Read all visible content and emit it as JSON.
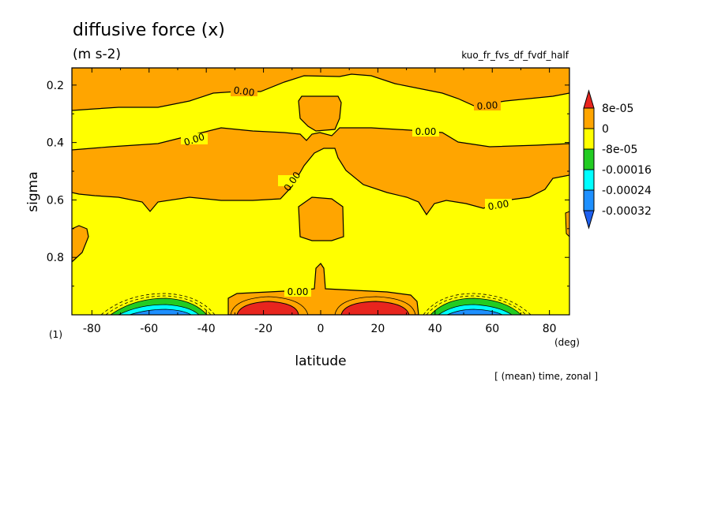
{
  "chart_data": {
    "type": "contour",
    "title": "diffusive force (x)",
    "units": "(m s-2)",
    "run_name": "kuo_fr_fvs_df_fvdf_half",
    "note": "[ (mean) time, zonal ]",
    "figure_number": "(1)",
    "xlabel": "latitude",
    "xunit": "(deg)",
    "ylabel": "sigma",
    "xlim": [
      -87,
      87
    ],
    "ylim": [
      1.0,
      0.14
    ],
    "y_inverted": true,
    "xticks": [
      "-80",
      "-60",
      "-40",
      "-20",
      "0",
      "20",
      "40",
      "60",
      "80"
    ],
    "yticks": [
      "0.2",
      "0.4",
      "0.6",
      "0.8"
    ],
    "contour_labels": [
      "0.00",
      "0.00",
      "0.00",
      "0.00",
      "0.00",
      "0.00",
      "0.00"
    ],
    "colorbar": {
      "levels": [
        "8e-05",
        "0",
        "-8e-05",
        "-0.00016",
        "-0.00024",
        "-0.00032"
      ],
      "colors": [
        "#e8251e",
        "#ffa500",
        "#ffff00",
        "#22cc22",
        "#00ffff",
        "#1e90ff",
        "#1e60f0"
      ]
    },
    "regions": [
      {
        "name": "positive-band-upper",
        "value": "0 to 8e-05"
      },
      {
        "name": "positive-band-middle",
        "value": "0 to 8e-05"
      },
      {
        "name": "negative-background",
        "value": "-8e-05 to 0"
      },
      {
        "name": "max-near-surface-south",
        "lat": -20,
        "sigma": 0.98,
        "value": ">8e-05"
      },
      {
        "name": "max-near-surface-north",
        "lat": 20,
        "sigma": 0.98,
        "value": ">8e-05"
      },
      {
        "name": "min-near-surface-south",
        "lat": -50,
        "sigma": 0.98,
        "value": "<-0.00032"
      },
      {
        "name": "min-near-surface-north",
        "lat": 50,
        "sigma": 0.98,
        "value": "<-0.00032"
      }
    ]
  }
}
